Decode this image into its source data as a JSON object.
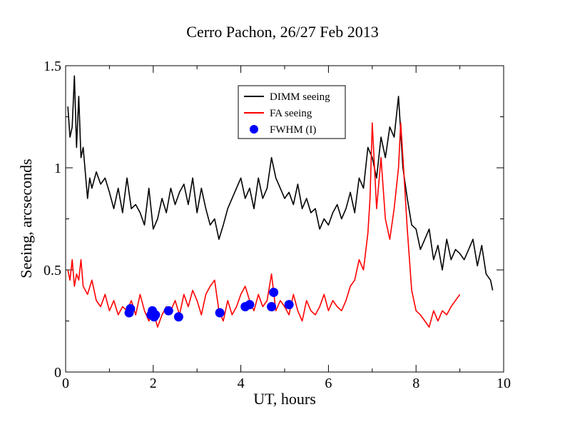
{
  "chart_data": {
    "type": "line",
    "title": "Cerro Pachon, 26/27 Feb 2013",
    "xlabel": "UT, hours",
    "ylabel": "Seeing, arcseconds",
    "xlim": [
      0,
      10
    ],
    "ylim": [
      0,
      1.5
    ],
    "x_ticks": [
      0,
      2,
      4,
      6,
      8,
      10
    ],
    "y_ticks": [
      0,
      0.5,
      1,
      1.5
    ],
    "x_tick_labels": [
      "0",
      "2",
      "4",
      "6",
      "8",
      "10"
    ],
    "y_tick_labels": [
      "0",
      "0.5",
      "1",
      "1.5"
    ],
    "grid": false,
    "legend_position": "top-center",
    "series": [
      {
        "name": "DIMM seeing",
        "color": "#000000",
        "style": "line",
        "x": [
          0.05,
          0.1,
          0.15,
          0.2,
          0.25,
          0.3,
          0.35,
          0.4,
          0.5,
          0.55,
          0.6,
          0.7,
          0.8,
          0.9,
          1.0,
          1.1,
          1.2,
          1.3,
          1.4,
          1.5,
          1.6,
          1.7,
          1.8,
          1.9,
          2.0,
          2.1,
          2.2,
          2.3,
          2.4,
          2.5,
          2.6,
          2.7,
          2.8,
          2.9,
          3.0,
          3.1,
          3.2,
          3.3,
          3.4,
          3.5,
          3.6,
          3.7,
          3.8,
          3.9,
          4.0,
          4.1,
          4.2,
          4.3,
          4.4,
          4.5,
          4.6,
          4.7,
          4.8,
          4.9,
          5.0,
          5.1,
          5.2,
          5.3,
          5.4,
          5.5,
          5.6,
          5.7,
          5.8,
          5.9,
          6.0,
          6.1,
          6.2,
          6.3,
          6.4,
          6.5,
          6.6,
          6.7,
          6.8,
          6.9,
          7.0,
          7.1,
          7.2,
          7.3,
          7.4,
          7.5,
          7.6,
          7.7,
          7.8,
          7.9,
          8.0,
          8.1,
          8.2,
          8.3,
          8.4,
          8.5,
          8.6,
          8.7,
          8.8,
          8.9,
          9.0,
          9.1,
          9.2,
          9.3,
          9.4,
          9.5,
          9.6,
          9.7,
          9.75
        ],
        "y": [
          1.3,
          1.15,
          1.2,
          1.45,
          1.1,
          1.35,
          1.05,
          1.1,
          0.85,
          0.95,
          0.9,
          0.98,
          0.92,
          0.95,
          0.88,
          0.8,
          0.9,
          0.78,
          0.95,
          0.8,
          0.82,
          0.78,
          0.72,
          0.9,
          0.7,
          0.75,
          0.85,
          0.78,
          0.9,
          0.82,
          0.88,
          0.92,
          0.82,
          0.95,
          0.78,
          0.9,
          0.8,
          0.72,
          0.75,
          0.65,
          0.72,
          0.8,
          0.85,
          0.9,
          0.95,
          0.85,
          0.9,
          0.8,
          0.95,
          0.85,
          0.9,
          1.05,
          0.95,
          0.9,
          0.85,
          0.88,
          0.82,
          0.92,
          0.8,
          0.85,
          0.78,
          0.8,
          0.7,
          0.75,
          0.72,
          0.78,
          0.82,
          0.75,
          0.8,
          0.88,
          0.78,
          0.95,
          0.9,
          1.1,
          1.05,
          0.95,
          1.15,
          1.05,
          1.2,
          1.15,
          1.35,
          1.0,
          0.85,
          0.72,
          0.7,
          0.6,
          0.65,
          0.7,
          0.55,
          0.62,
          0.5,
          0.65,
          0.55,
          0.6,
          0.58,
          0.55,
          0.6,
          0.65,
          0.52,
          0.62,
          0.48,
          0.45,
          0.4
        ]
      },
      {
        "name": "FA seeing",
        "color": "#ff0000",
        "style": "line",
        "x": [
          0.05,
          0.1,
          0.15,
          0.2,
          0.25,
          0.3,
          0.35,
          0.4,
          0.5,
          0.6,
          0.7,
          0.8,
          0.9,
          1.0,
          1.1,
          1.2,
          1.3,
          1.4,
          1.5,
          1.6,
          1.7,
          1.8,
          1.9,
          2.0,
          2.1,
          2.2,
          2.3,
          2.4,
          2.5,
          2.6,
          2.7,
          2.8,
          2.9,
          3.0,
          3.1,
          3.2,
          3.3,
          3.4,
          3.5,
          3.6,
          3.7,
          3.8,
          3.9,
          4.0,
          4.1,
          4.2,
          4.3,
          4.4,
          4.5,
          4.6,
          4.7,
          4.8,
          4.9,
          5.0,
          5.1,
          5.2,
          5.3,
          5.4,
          5.5,
          5.6,
          5.7,
          5.8,
          5.9,
          6.0,
          6.1,
          6.2,
          6.3,
          6.4,
          6.5,
          6.6,
          6.7,
          6.8,
          6.9,
          6.95,
          7.0,
          7.1,
          7.2,
          7.3,
          7.4,
          7.5,
          7.6,
          7.65,
          7.7,
          7.8,
          7.9,
          8.0,
          8.1,
          8.2,
          8.3,
          8.4,
          8.5,
          8.6,
          8.7,
          8.8,
          8.9,
          9.0
        ],
        "y": [
          0.5,
          0.45,
          0.55,
          0.42,
          0.48,
          0.45,
          0.55,
          0.42,
          0.38,
          0.45,
          0.35,
          0.32,
          0.38,
          0.3,
          0.35,
          0.28,
          0.32,
          0.3,
          0.35,
          0.28,
          0.38,
          0.3,
          0.25,
          0.3,
          0.22,
          0.28,
          0.32,
          0.3,
          0.35,
          0.28,
          0.38,
          0.32,
          0.4,
          0.35,
          0.28,
          0.38,
          0.42,
          0.45,
          0.3,
          0.25,
          0.35,
          0.28,
          0.32,
          0.38,
          0.42,
          0.35,
          0.3,
          0.38,
          0.32,
          0.35,
          0.48,
          0.3,
          0.35,
          0.32,
          0.28,
          0.38,
          0.3,
          0.25,
          0.35,
          0.3,
          0.28,
          0.32,
          0.38,
          0.3,
          0.35,
          0.32,
          0.3,
          0.35,
          0.42,
          0.45,
          0.55,
          0.5,
          0.68,
          0.85,
          1.22,
          0.8,
          1.05,
          0.75,
          0.65,
          0.8,
          1.0,
          1.22,
          1.05,
          0.7,
          0.4,
          0.3,
          0.28,
          0.25,
          0.22,
          0.3,
          0.25,
          0.3,
          0.28,
          0.32,
          0.35,
          0.38
        ]
      },
      {
        "name": "FWHM (I)",
        "color": "#0000ff",
        "style": "markers",
        "x": [
          1.45,
          1.48,
          1.98,
          2.02,
          2.05,
          1.95,
          2.35,
          2.58,
          3.52,
          4.1,
          4.2,
          4.7,
          4.75,
          5.1
        ],
        "y": [
          0.29,
          0.31,
          0.3,
          0.27,
          0.28,
          0.28,
          0.3,
          0.27,
          0.29,
          0.32,
          0.33,
          0.32,
          0.39,
          0.33
        ]
      }
    ]
  }
}
